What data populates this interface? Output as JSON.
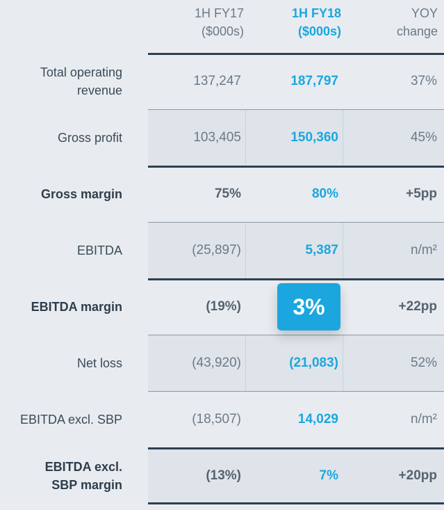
{
  "header": {
    "col1": [
      "1H FY17",
      "($000s)"
    ],
    "col2": [
      "1H FY18",
      "($000s)"
    ],
    "col3": [
      "YOY",
      "change"
    ]
  },
  "rows": [
    {
      "label": [
        "Total operating",
        "revenue"
      ],
      "fy17": "137,247",
      "fy18": "187,797",
      "yoy": "37%"
    },
    {
      "label": [
        "Gross profit"
      ],
      "fy17": "103,405",
      "fy18": "150,360",
      "yoy": "45%"
    },
    {
      "label": [
        "Gross margin"
      ],
      "fy17": "75%",
      "fy18": "80%",
      "yoy": "+5pp"
    },
    {
      "label": [
        "EBITDA"
      ],
      "fy17": "(25,897)",
      "fy18": "5,387",
      "yoy": "n/m²"
    },
    {
      "label": [
        "EBITDA margin"
      ],
      "fy17": "(19%)",
      "fy18": "",
      "yoy": "+22pp"
    },
    {
      "label": [
        "Net loss"
      ],
      "fy17": "(43,920)",
      "fy18": "(21,083)",
      "yoy": "52%"
    },
    {
      "label": [
        "EBITDA excl. SBP"
      ],
      "fy17": "(18,507)",
      "fy18": "14,029",
      "yoy": "n/m²"
    },
    {
      "label": [
        "EBITDA excl.",
        "SBP margin"
      ],
      "fy17": "(13%)",
      "fy18": "7%",
      "yoy": "+20pp"
    }
  ],
  "highlight_badge": "3%"
}
